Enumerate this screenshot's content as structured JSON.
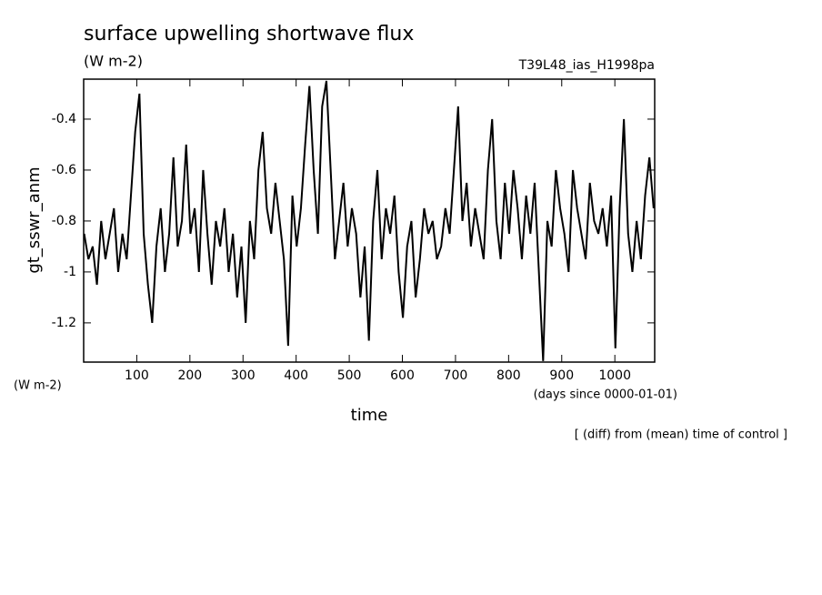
{
  "chart_data": {
    "type": "line",
    "title": "surface upwelling shortwave flux",
    "units": "(W m-2)",
    "run_label": "T39L48_ias_H1998pa",
    "ylabel": "gt_sswr_anm",
    "xlabel": "time",
    "xunits": "(days since 0000-01-01)",
    "footnote": "[ (diff) from (mean) time of control ]",
    "xlim": [
      0,
      1075
    ],
    "ylim": [
      -1.354,
      -0.243
    ],
    "xticks": [
      100,
      200,
      300,
      400,
      500,
      600,
      700,
      800,
      900,
      1000
    ],
    "yticks": [
      -1.2,
      -1.0,
      -0.8,
      -0.6,
      -0.4
    ],
    "x": [
      1,
      9,
      17,
      25,
      33,
      41,
      49,
      57,
      65,
      73,
      81,
      89,
      97,
      105,
      113,
      121,
      129,
      137,
      145,
      153,
      161,
      169,
      177,
      185,
      193,
      201,
      209,
      217,
      225,
      233,
      241,
      249,
      257,
      265,
      273,
      281,
      289,
      297,
      305,
      313,
      321,
      329,
      337,
      345,
      353,
      361,
      369,
      377,
      385,
      393,
      401,
      409,
      417,
      425,
      433,
      441,
      449,
      457,
      465,
      473,
      481,
      489,
      497,
      505,
      513,
      521,
      529,
      537,
      545,
      553,
      561,
      569,
      577,
      585,
      593,
      601,
      609,
      617,
      625,
      633,
      641,
      649,
      657,
      665,
      673,
      681,
      689,
      697,
      705,
      713,
      721,
      729,
      737,
      745,
      753,
      761,
      769,
      777,
      785,
      793,
      801,
      809,
      817,
      825,
      833,
      841,
      849,
      857,
      865,
      873,
      881,
      889,
      897,
      905,
      913,
      921,
      929,
      937,
      945,
      953,
      961,
      969,
      977,
      985,
      993,
      1001,
      1009,
      1017,
      1025,
      1033,
      1041,
      1049,
      1057,
      1065,
      1073
    ],
    "series": [
      {
        "color": "#000000",
        "values": [
          -0.85,
          -0.95,
          -0.9,
          -1.05,
          -0.8,
          -0.95,
          -0.85,
          -0.75,
          -1.0,
          -0.85,
          -0.95,
          -0.7,
          -0.45,
          -0.3,
          -0.85,
          -1.05,
          -1.2,
          -0.9,
          -0.75,
          -1.0,
          -0.85,
          -0.55,
          -0.9,
          -0.8,
          -0.5,
          -0.85,
          -0.75,
          -1.0,
          -0.6,
          -0.85,
          -1.05,
          -0.8,
          -0.9,
          -0.75,
          -1.0,
          -0.85,
          -1.1,
          -0.9,
          -1.2,
          -0.8,
          -0.95,
          -0.6,
          -0.45,
          -0.75,
          -0.85,
          -0.65,
          -0.8,
          -0.95,
          -1.29,
          -0.7,
          -0.9,
          -0.75,
          -0.5,
          -0.27,
          -0.6,
          -0.85,
          -0.35,
          -0.25,
          -0.6,
          -0.95,
          -0.8,
          -0.65,
          -0.9,
          -0.75,
          -0.85,
          -1.1,
          -0.9,
          -1.27,
          -0.8,
          -0.6,
          -0.95,
          -0.75,
          -0.85,
          -0.7,
          -1.0,
          -1.18,
          -0.9,
          -0.8,
          -1.1,
          -0.95,
          -0.75,
          -0.85,
          -0.8,
          -0.95,
          -0.9,
          -0.75,
          -0.85,
          -0.6,
          -0.35,
          -0.8,
          -0.65,
          -0.9,
          -0.75,
          -0.85,
          -0.95,
          -0.6,
          -0.4,
          -0.8,
          -0.95,
          -0.65,
          -0.85,
          -0.6,
          -0.75,
          -0.95,
          -0.7,
          -0.85,
          -0.65,
          -1.0,
          -1.35,
          -0.8,
          -0.9,
          -0.6,
          -0.75,
          -0.85,
          -1.0,
          -0.6,
          -0.75,
          -0.85,
          -0.95,
          -0.65,
          -0.8,
          -0.85,
          -0.75,
          -0.9,
          -0.7,
          -1.3,
          -0.75,
          -0.4,
          -0.85,
          -1.0,
          -0.8,
          -0.95,
          -0.7,
          -0.55,
          -0.75
        ]
      }
    ]
  }
}
